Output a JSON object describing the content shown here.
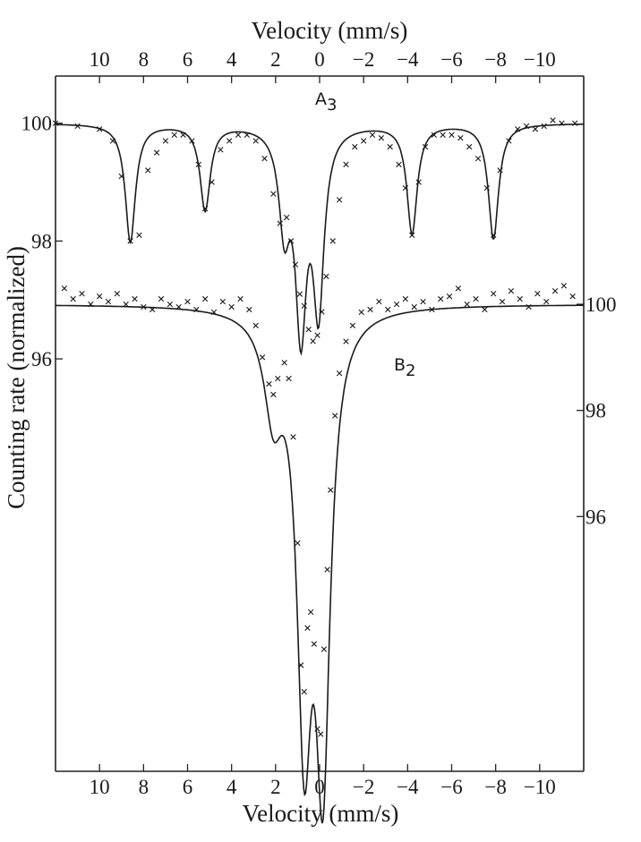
{
  "chart_data": {
    "type": "scatter",
    "top_axis_label": "Velocity (mm/s)",
    "bottom_axis_label": "Velocity (mm/s)",
    "ylabel": "Counting rate (normalized)",
    "x_ticks": [
      10,
      8,
      6,
      4,
      2,
      0,
      -2,
      -4,
      -6,
      -8,
      -10
    ],
    "x_tick_labels": [
      "10",
      "8",
      "6",
      "4",
      "2",
      "0",
      "−2",
      "−4",
      "−6",
      "−8",
      "−10"
    ],
    "xlim": [
      12,
      -12
    ],
    "left_ylim": [
      89,
      100.8
    ],
    "left_y_ticks": [
      100,
      98,
      96
    ],
    "left_y_tick_labels": [
      "100",
      "98",
      "96"
    ],
    "right_ylim": [
      91.2,
      104.3
    ],
    "right_y_ticks": [
      100,
      98,
      96
    ],
    "right_y_tick_labels": [
      "100",
      "98",
      "96"
    ],
    "series": [
      {
        "name": "A₃",
        "label_main": "A",
        "label_sub": "3",
        "axis": "left",
        "baseline": 100,
        "peaks": [
          {
            "v": 8.6,
            "depth": 2.0,
            "width": 0.28
          },
          {
            "v": 5.2,
            "depth": 1.45,
            "width": 0.28
          },
          {
            "v": 1.6,
            "depth": 1.6,
            "width": 0.3
          },
          {
            "v": 0.85,
            "depth": 3.3,
            "width": 0.3
          },
          {
            "v": 0.05,
            "depth": 3.0,
            "width": 0.3
          },
          {
            "v": -4.2,
            "depth": 1.85,
            "width": 0.28
          },
          {
            "v": -7.9,
            "depth": 1.95,
            "width": 0.28
          }
        ],
        "x": [
          12,
          11,
          10,
          9.4,
          9,
          8.6,
          8.2,
          7.8,
          7.4,
          7,
          6.6,
          6.2,
          5.8,
          5.5,
          5.2,
          4.9,
          4.5,
          4.1,
          3.7,
          3.3,
          2.9,
          2.5,
          2.1,
          1.8,
          1.5,
          1.3,
          1.1,
          0.9,
          0.7,
          0.5,
          0.3,
          0.1,
          -0.1,
          -0.3,
          -0.6,
          -0.9,
          -1.2,
          -1.6,
          -2,
          -2.4,
          -2.8,
          -3.2,
          -3.6,
          -3.9,
          -4.2,
          -4.5,
          -4.8,
          -5.2,
          -5.6,
          -6,
          -6.4,
          -6.8,
          -7.2,
          -7.6,
          -7.9,
          -8.2,
          -8.6,
          -9,
          -9.4,
          -9.8,
          -10.2,
          -10.6,
          -11,
          -11.6
        ],
        "y": [
          100.0,
          99.95,
          99.9,
          99.7,
          99.1,
          98.0,
          98.1,
          99.2,
          99.5,
          99.7,
          99.8,
          99.8,
          99.7,
          99.3,
          98.55,
          99.0,
          99.55,
          99.7,
          99.8,
          99.8,
          99.7,
          99.4,
          98.8,
          98.3,
          98.4,
          98.0,
          97.6,
          97.1,
          96.9,
          96.5,
          96.3,
          96.4,
          96.8,
          97.4,
          98.0,
          98.7,
          99.3,
          99.6,
          99.7,
          99.8,
          99.75,
          99.6,
          99.3,
          98.9,
          98.1,
          99.0,
          99.6,
          99.8,
          99.8,
          99.8,
          99.75,
          99.6,
          99.4,
          98.9,
          98.1,
          99.2,
          99.7,
          99.9,
          99.95,
          99.9,
          99.95,
          100.05,
          100.0,
          100.0
        ]
      },
      {
        "name": "B₂",
        "label_main": "B",
        "label_sub": "2",
        "axis": "right",
        "baseline": 100,
        "peaks": [
          {
            "v": 2.1,
            "depth": 1.75,
            "width": 0.5
          },
          {
            "v": 0.7,
            "depth": 7.5,
            "width": 0.4
          },
          {
            "v": -0.15,
            "depth": 8.3,
            "width": 0.4
          }
        ],
        "x": [
          11.6,
          11.2,
          10.8,
          10.4,
          10,
          9.6,
          9.2,
          8.8,
          8.4,
          8,
          7.6,
          7.2,
          6.8,
          6.4,
          6,
          5.6,
          5.2,
          4.8,
          4.4,
          4,
          3.6,
          3.2,
          2.9,
          2.6,
          2.3,
          2.1,
          1.9,
          1.6,
          1.4,
          1.2,
          1.0,
          0.85,
          0.7,
          0.55,
          0.4,
          0.25,
          0.1,
          -0.05,
          -0.2,
          -0.35,
          -0.5,
          -0.7,
          -0.9,
          -1.2,
          -1.5,
          -1.9,
          -2.3,
          -2.7,
          -3.1,
          -3.5,
          -3.9,
          -4.3,
          -4.7,
          -5.1,
          -5.5,
          -5.9,
          -6.3,
          -6.7,
          -7.1,
          -7.5,
          -7.9,
          -8.3,
          -8.7,
          -9.1,
          -9.5,
          -9.9,
          -10.3,
          -10.7,
          -11.1,
          -11.5
        ],
        "y": [
          100.3,
          100.1,
          100.2,
          100.0,
          100.15,
          100.05,
          100.2,
          100.0,
          100.1,
          99.95,
          99.9,
          100.1,
          100.0,
          99.95,
          100.05,
          99.9,
          100.1,
          99.85,
          100.05,
          99.95,
          100.1,
          99.9,
          99.6,
          99.0,
          98.5,
          98.3,
          98.6,
          98.9,
          98.6,
          97.5,
          95.5,
          93.2,
          92.7,
          93.9,
          94.2,
          93.6,
          92.0,
          91.9,
          93.5,
          95.0,
          96.5,
          97.9,
          98.7,
          99.3,
          99.6,
          99.85,
          99.9,
          100.05,
          99.9,
          100.0,
          100.1,
          99.95,
          100.05,
          99.9,
          100.1,
          100.15,
          100.3,
          100.0,
          100.1,
          99.9,
          100.2,
          100.05,
          100.25,
          100.1,
          99.95,
          100.2,
          100.05,
          100.25,
          100.35,
          100.15
        ]
      }
    ]
  }
}
